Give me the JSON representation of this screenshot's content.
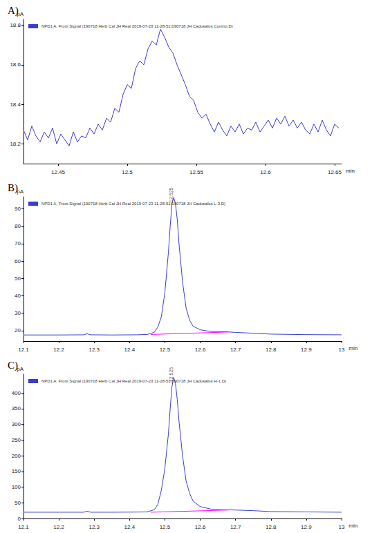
{
  "chart_data": [
    {
      "type": "line",
      "title": "A)",
      "xlabel": "min",
      "ylabel": "pA",
      "xlim": [
        12.425,
        12.655
      ],
      "xticks": [
        12.45,
        12.5,
        12.55,
        12.6,
        12.65
      ],
      "ylim": [
        18.1,
        18.83
      ],
      "yticks": [
        18.2,
        18.4,
        18.6,
        18.8
      ],
      "grid": false,
      "legend": "upper left",
      "series": [
        {
          "name": "NPD1 A, Front Signal (190718 Herb Cal JH Real 2019-07-23 11-28-51\\190718 JH Cadusafos Control.D)",
          "color": "#3b3bd0",
          "x": [
            12.425,
            12.428,
            12.431,
            12.434,
            12.437,
            12.44,
            12.443,
            12.446,
            12.449,
            12.452,
            12.455,
            12.458,
            12.461,
            12.464,
            12.467,
            12.47,
            12.473,
            12.476,
            12.479,
            12.482,
            12.485,
            12.488,
            12.491,
            12.494,
            12.497,
            12.5,
            12.503,
            12.506,
            12.509,
            12.512,
            12.515,
            12.518,
            12.521,
            12.524,
            12.527,
            12.53,
            12.533,
            12.536,
            12.539,
            12.542,
            12.545,
            12.548,
            12.551,
            12.554,
            12.557,
            12.56,
            12.563,
            12.566,
            12.569,
            12.572,
            12.575,
            12.578,
            12.581,
            12.584,
            12.587,
            12.59,
            12.593,
            12.596,
            12.599,
            12.602,
            12.605,
            12.608,
            12.611,
            12.614,
            12.617,
            12.62,
            12.623,
            12.626,
            12.629,
            12.632,
            12.635,
            12.638,
            12.641,
            12.644,
            12.647,
            12.65,
            12.653
          ],
          "values": [
            18.27,
            18.22,
            18.29,
            18.24,
            18.21,
            18.26,
            18.23,
            18.28,
            18.2,
            18.25,
            18.22,
            18.19,
            18.26,
            18.21,
            18.24,
            18.23,
            18.28,
            18.25,
            18.3,
            18.27,
            18.33,
            18.31,
            18.38,
            18.36,
            18.45,
            18.5,
            18.48,
            18.58,
            18.62,
            18.6,
            18.68,
            18.72,
            18.7,
            18.78,
            18.74,
            18.69,
            18.66,
            18.6,
            18.55,
            18.5,
            18.44,
            18.42,
            18.36,
            18.33,
            18.35,
            18.3,
            18.26,
            18.31,
            18.27,
            18.24,
            18.29,
            18.26,
            18.3,
            18.25,
            18.28,
            18.27,
            18.31,
            18.26,
            18.29,
            18.32,
            18.28,
            18.33,
            18.3,
            18.34,
            18.29,
            18.32,
            18.28,
            18.31,
            18.27,
            18.25,
            18.3,
            18.26,
            18.32,
            18.27,
            18.24,
            18.3,
            18.28
          ]
        }
      ]
    },
    {
      "type": "line",
      "title": "B)",
      "xlabel": "min",
      "ylabel": "pA",
      "xlim": [
        12.1,
        13.0
      ],
      "xticks": [
        12.1,
        12.2,
        12.3,
        12.4,
        12.5,
        12.6,
        12.7,
        12.8,
        12.9,
        13
      ],
      "ylim": [
        14,
        97
      ],
      "yticks": [
        20,
        30,
        40,
        50,
        60,
        70,
        80,
        90
      ],
      "grid": false,
      "legend": "upper left",
      "series": [
        {
          "name": "NPD1 A, Front Signal (190718 Herb Cal JH Real 2019-07-23 11-28-51\\190718 JH Cadusafos L-3.D)",
          "color": "#3b3bd0",
          "x": [
            12.1,
            12.2,
            12.27,
            12.28,
            12.29,
            12.35,
            12.42,
            12.45,
            12.47,
            12.48,
            12.49,
            12.5,
            12.51,
            12.515,
            12.52,
            12.525,
            12.53,
            12.535,
            12.54,
            12.55,
            12.56,
            12.57,
            12.58,
            12.6,
            12.63,
            12.66,
            12.7,
            12.75,
            12.8,
            12.9,
            13.0
          ],
          "values": [
            17.5,
            17.5,
            17.6,
            18.2,
            17.6,
            17.5,
            17.6,
            17.8,
            19,
            22,
            28,
            42,
            65,
            80,
            93,
            96.5,
            93,
            84,
            70,
            48,
            33,
            26,
            22.5,
            20.5,
            19.5,
            19.5,
            19,
            18.5,
            18,
            17.7,
            17.6
          ]
        },
        {
          "color": "#ff00ff",
          "x": [
            12.46,
            12.68
          ],
          "values": [
            17.8,
            19.2
          ]
        }
      ],
      "annotations": [
        {
          "x": 12.525,
          "y": 96.5,
          "text": "12.525"
        }
      ]
    },
    {
      "type": "line",
      "title": "C)",
      "xlabel": "min",
      "ylabel": "pA",
      "xlim": [
        12.1,
        13.0
      ],
      "xticks": [
        12.1,
        12.2,
        12.3,
        12.4,
        12.5,
        12.6,
        12.7,
        12.8,
        12.9,
        13
      ],
      "ylim": [
        0,
        460
      ],
      "yticks": [
        0,
        50,
        100,
        150,
        200,
        250,
        300,
        350,
        400
      ],
      "grid": false,
      "legend": "upper left",
      "series": [
        {
          "name": "NPD1 A, Front Signal (190718 Herb Cal JH Real 2019-07-23 11-28-51\\190718 JH Cadusafos H-1.D)",
          "color": "#3b3bd0",
          "x": [
            12.1,
            12.2,
            12.27,
            12.28,
            12.29,
            12.35,
            12.42,
            12.45,
            12.47,
            12.48,
            12.49,
            12.5,
            12.51,
            12.515,
            12.52,
            12.525,
            12.53,
            12.535,
            12.54,
            12.55,
            12.56,
            12.57,
            12.58,
            12.6,
            12.63,
            12.66,
            12.7,
            12.75,
            12.8,
            12.9,
            13.0
          ],
          "values": [
            20,
            20,
            20,
            23,
            20,
            20,
            20.5,
            21,
            28,
            45,
            90,
            160,
            270,
            350,
            420,
            450,
            430,
            380,
            310,
            200,
            120,
            80,
            55,
            38,
            30,
            28,
            27,
            25,
            22,
            21,
            20
          ]
        },
        {
          "color": "#ff00ff",
          "x": [
            12.46,
            12.68
          ],
          "values": [
            20,
            27
          ]
        }
      ],
      "annotations": [
        {
          "x": 12.525,
          "y": 450,
          "text": "12.525"
        }
      ]
    }
  ]
}
